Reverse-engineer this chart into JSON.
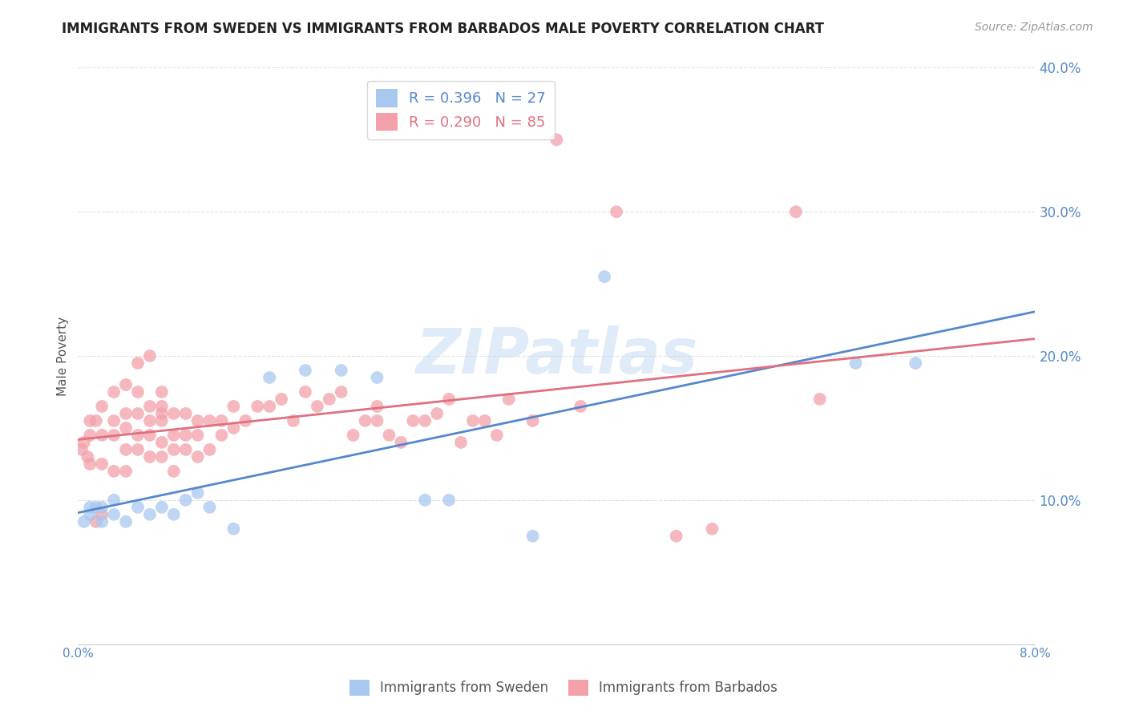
{
  "title": "IMMIGRANTS FROM SWEDEN VS IMMIGRANTS FROM BARBADOS MALE POVERTY CORRELATION CHART",
  "source": "Source: ZipAtlas.com",
  "ylabel": "Male Poverty",
  "watermark": "ZIPatlas",
  "xlim": [
    0.0,
    0.08
  ],
  "ylim": [
    0.0,
    0.4
  ],
  "x_ticks": [
    0.0,
    0.08
  ],
  "x_tick_labels": [
    "0.0%",
    "8.0%"
  ],
  "y_ticks": [
    0.0,
    0.1,
    0.2,
    0.3,
    0.4
  ],
  "y_tick_labels": [
    "",
    "10.0%",
    "20.0%",
    "30.0%",
    "40.0%"
  ],
  "sweden_color": "#A8C8F0",
  "barbados_color": "#F4A0AA",
  "sweden_line_color": "#5588CC",
  "barbados_line_color": "#E07080",
  "sweden_R": 0.396,
  "sweden_N": 27,
  "barbados_R": 0.29,
  "barbados_N": 85,
  "background_color": "#FFFFFF",
  "grid_color": "#DDDDDD",
  "title_color": "#222222",
  "axis_tick_color": "#5588CC",
  "sweden_x": [
    0.0005,
    0.001,
    0.001,
    0.0015,
    0.002,
    0.002,
    0.003,
    0.003,
    0.004,
    0.005,
    0.006,
    0.007,
    0.008,
    0.009,
    0.01,
    0.011,
    0.013,
    0.016,
    0.019,
    0.022,
    0.025,
    0.029,
    0.031,
    0.038,
    0.044,
    0.065,
    0.07
  ],
  "sweden_y": [
    0.085,
    0.09,
    0.095,
    0.095,
    0.085,
    0.095,
    0.09,
    0.1,
    0.085,
    0.095,
    0.09,
    0.095,
    0.09,
    0.1,
    0.105,
    0.095,
    0.08,
    0.185,
    0.19,
    0.19,
    0.185,
    0.1,
    0.1,
    0.075,
    0.255,
    0.195,
    0.195
  ],
  "barbados_x": [
    0.0003,
    0.0005,
    0.0008,
    0.001,
    0.001,
    0.001,
    0.0015,
    0.0015,
    0.002,
    0.002,
    0.002,
    0.002,
    0.003,
    0.003,
    0.003,
    0.003,
    0.004,
    0.004,
    0.004,
    0.004,
    0.004,
    0.005,
    0.005,
    0.005,
    0.005,
    0.005,
    0.006,
    0.006,
    0.006,
    0.006,
    0.006,
    0.007,
    0.007,
    0.007,
    0.007,
    0.007,
    0.007,
    0.008,
    0.008,
    0.008,
    0.008,
    0.009,
    0.009,
    0.009,
    0.01,
    0.01,
    0.01,
    0.011,
    0.011,
    0.012,
    0.012,
    0.013,
    0.013,
    0.014,
    0.015,
    0.016,
    0.017,
    0.018,
    0.019,
    0.02,
    0.021,
    0.022,
    0.023,
    0.024,
    0.025,
    0.025,
    0.026,
    0.027,
    0.028,
    0.029,
    0.03,
    0.031,
    0.032,
    0.033,
    0.034,
    0.035,
    0.036,
    0.038,
    0.04,
    0.042,
    0.045,
    0.05,
    0.053,
    0.06,
    0.062
  ],
  "barbados_y": [
    0.135,
    0.14,
    0.13,
    0.125,
    0.145,
    0.155,
    0.085,
    0.155,
    0.09,
    0.125,
    0.145,
    0.165,
    0.12,
    0.145,
    0.155,
    0.175,
    0.12,
    0.135,
    0.15,
    0.16,
    0.18,
    0.135,
    0.145,
    0.16,
    0.175,
    0.195,
    0.13,
    0.145,
    0.155,
    0.165,
    0.2,
    0.13,
    0.14,
    0.155,
    0.16,
    0.165,
    0.175,
    0.12,
    0.135,
    0.145,
    0.16,
    0.135,
    0.145,
    0.16,
    0.13,
    0.145,
    0.155,
    0.135,
    0.155,
    0.145,
    0.155,
    0.15,
    0.165,
    0.155,
    0.165,
    0.165,
    0.17,
    0.155,
    0.175,
    0.165,
    0.17,
    0.175,
    0.145,
    0.155,
    0.155,
    0.165,
    0.145,
    0.14,
    0.155,
    0.155,
    0.16,
    0.17,
    0.14,
    0.155,
    0.155,
    0.145,
    0.17,
    0.155,
    0.35,
    0.165,
    0.3,
    0.075,
    0.08,
    0.3,
    0.17
  ]
}
